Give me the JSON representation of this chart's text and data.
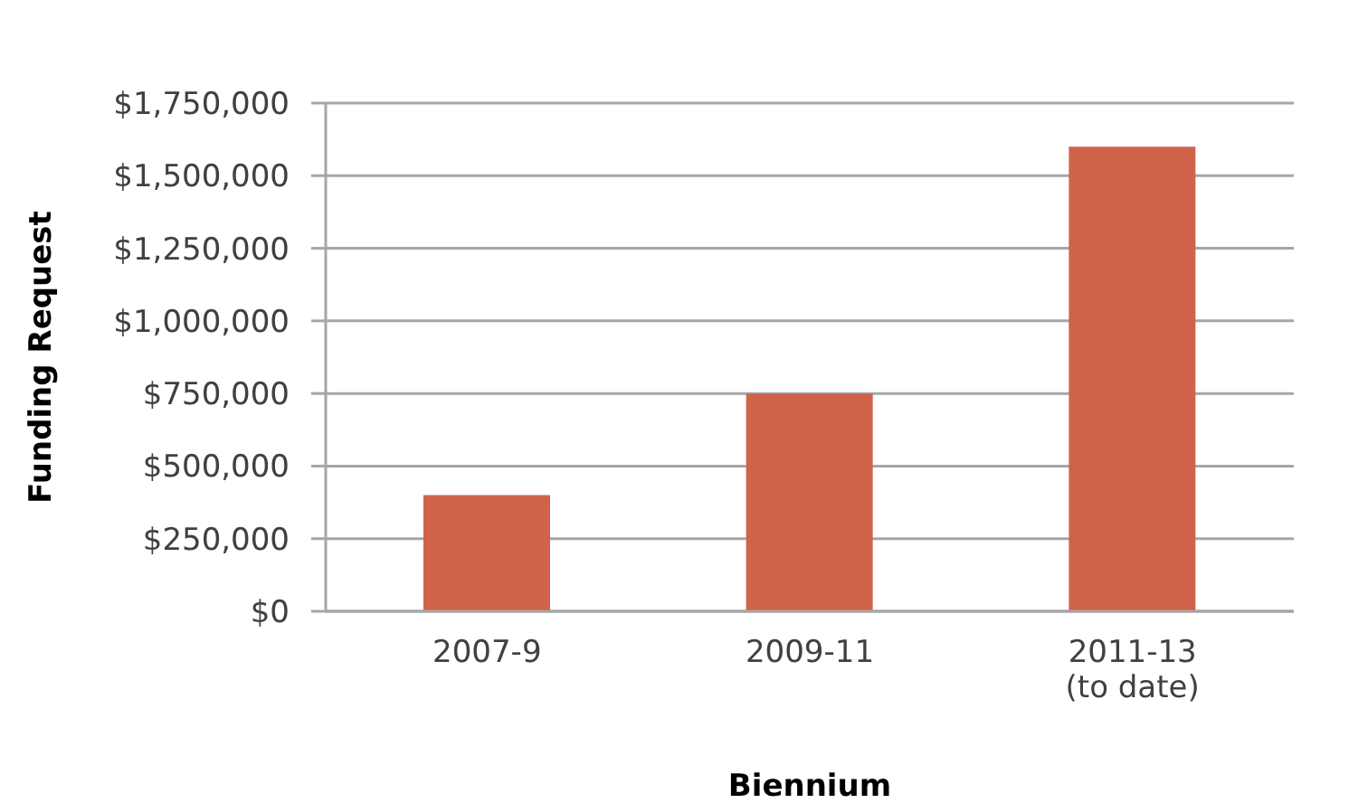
{
  "chart_data": {
    "type": "bar",
    "xlabel": "Biennium",
    "ylabel": "Funding Request",
    "categories": [
      "2007-9",
      "2009-11",
      "2011-13 (to date)"
    ],
    "values": [
      400000,
      750000,
      1600000
    ],
    "color": "#d0634a",
    "ylim": [
      0,
      1750000
    ],
    "yticks": [
      {
        "value": 0,
        "label": "$0"
      },
      {
        "value": 250000,
        "label": "$250,000"
      },
      {
        "value": 500000,
        "label": "$500,000"
      },
      {
        "value": 750000,
        "label": "$750,000"
      },
      {
        "value": 1000000,
        "label": "$1,000,000"
      },
      {
        "value": 1250000,
        "label": "$1,250,000"
      },
      {
        "value": 1500000,
        "label": "$1,500,000"
      },
      {
        "value": 1750000,
        "label": "$1,750,000"
      }
    ],
    "grid": "y"
  }
}
